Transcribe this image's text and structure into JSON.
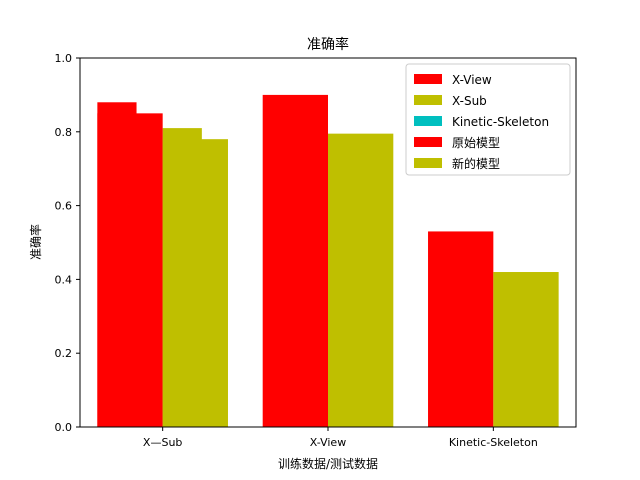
{
  "chart_data": {
    "type": "bar",
    "title": "准确率",
    "xlabel": "训练数据/测试数据",
    "ylabel": "准确率",
    "ylim": [
      0,
      1.0
    ],
    "yticks": [
      "0.0",
      "0.2",
      "0.4",
      "0.6",
      "0.8",
      "1.0"
    ],
    "categories": [
      "X—Sub",
      "X-View",
      "Kinetic-Skeleton"
    ],
    "legend": {
      "position": "top-right",
      "entries": [
        {
          "label": "X-View",
          "color": "#ff0000"
        },
        {
          "label": "X-Sub",
          "color": "#bfbf00"
        },
        {
          "label": "Kinetic-Skeleton",
          "color": "#00bfbf"
        },
        {
          "label": "原始模型",
          "color": "#ff0000"
        },
        {
          "label": "新的模型",
          "color": "#bfbf00"
        }
      ]
    },
    "series": [
      {
        "name": "X-View",
        "color": "#ff0000",
        "values": [
          0.88,
          null,
          null
        ]
      },
      {
        "name": "X-Sub",
        "color": "#bfbf00",
        "values": [
          0.81,
          null,
          null
        ]
      },
      {
        "name": "原始模型",
        "color": "#ff0000",
        "values": [
          0.85,
          0.9,
          0.53
        ]
      },
      {
        "name": "新的模型",
        "color": "#bfbf00",
        "values": [
          0.78,
          0.795,
          0.42
        ]
      }
    ],
    "grid": false
  }
}
